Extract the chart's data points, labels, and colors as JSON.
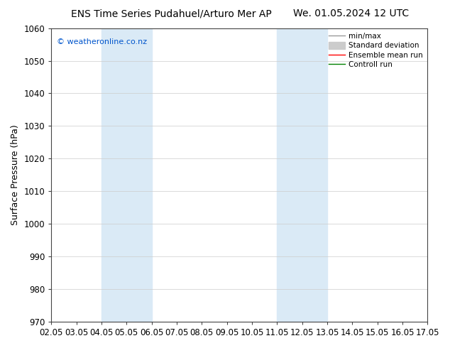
{
  "title_left": "ENS Time Series Pudahuel/Arturo Mer AP",
  "title_right": "We. 01.05.2024 12 UTC",
  "ylabel": "Surface Pressure (hPa)",
  "ylim": [
    970,
    1060
  ],
  "yticks": [
    970,
    980,
    990,
    1000,
    1010,
    1020,
    1030,
    1040,
    1050,
    1060
  ],
  "xtick_labels": [
    "02.05",
    "03.05",
    "04.05",
    "05.05",
    "06.05",
    "07.05",
    "08.05",
    "09.05",
    "10.05",
    "11.05",
    "12.05",
    "13.05",
    "14.05",
    "15.05",
    "16.05",
    "17.05"
  ],
  "xlim": [
    0,
    15
  ],
  "shaded_regions": [
    {
      "x_start": 2,
      "x_end": 4,
      "color": "#daeaf6"
    },
    {
      "x_start": 9,
      "x_end": 11,
      "color": "#daeaf6"
    }
  ],
  "watermark_text": "© weatheronline.co.nz",
  "watermark_color": "#0055cc",
  "background_color": "#ffffff",
  "plot_bg_color": "#ffffff",
  "legend_items": [
    {
      "label": "min/max",
      "color": "#999999",
      "lw": 1.0,
      "type": "line"
    },
    {
      "label": "Standard deviation",
      "color": "#cccccc",
      "lw": 5,
      "type": "bar"
    },
    {
      "label": "Ensemble mean run",
      "color": "#ff0000",
      "lw": 1.0,
      "type": "line"
    },
    {
      "label": "Controll run",
      "color": "#008000",
      "lw": 1.0,
      "type": "line"
    }
  ],
  "title_fontsize": 10,
  "ylabel_fontsize": 9,
  "tick_fontsize": 8.5,
  "watermark_fontsize": 8,
  "legend_fontsize": 7.5
}
